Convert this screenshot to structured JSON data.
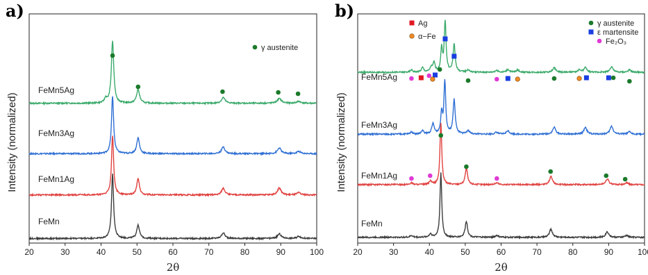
{
  "chart_data": [
    {
      "panel": "a)",
      "type": "line",
      "xlabel": "2θ",
      "ylabel": "Intensity (normalized)",
      "xlim": [
        20,
        100
      ],
      "xticks": [
        "20",
        "30",
        "40",
        "50",
        "60",
        "70",
        "80",
        "90",
        "100"
      ],
      "series": [
        {
          "name": "FeMn5Ag",
          "color": "#3aaa6a",
          "offset": 0.61,
          "peaks": [
            [
              41.3,
              0.02,
              0.4
            ],
            [
              43.2,
              0.27,
              0.4
            ],
            [
              50.3,
              0.06,
              0.5
            ],
            [
              74.0,
              0.025,
              0.6
            ],
            [
              89.6,
              0.02,
              0.7
            ],
            [
              95.0,
              0.008,
              0.7
            ]
          ]
        },
        {
          "name": "FeMn3Ag",
          "color": "#2f6fd4",
          "offset": 0.39,
          "peaks": [
            [
              43.2,
              0.25,
              0.35
            ],
            [
              50.3,
              0.07,
              0.45
            ],
            [
              74.0,
              0.03,
              0.55
            ],
            [
              89.6,
              0.025,
              0.6
            ],
            [
              95.0,
              0.01,
              0.6
            ]
          ]
        },
        {
          "name": "FeMn1Ag",
          "color": "#e0413f",
          "offset": 0.21,
          "peaks": [
            [
              43.2,
              0.26,
              0.35
            ],
            [
              50.3,
              0.07,
              0.45
            ],
            [
              74.0,
              0.03,
              0.55
            ],
            [
              89.6,
              0.03,
              0.6
            ],
            [
              95.0,
              0.01,
              0.6
            ]
          ]
        },
        {
          "name": "FeMn",
          "color": "#3c3c3c",
          "offset": 0.02,
          "peaks": [
            [
              43.2,
              0.28,
              0.35
            ],
            [
              50.3,
              0.06,
              0.45
            ],
            [
              74.0,
              0.025,
              0.55
            ],
            [
              89.6,
              0.02,
              0.6
            ],
            [
              95.0,
              0.01,
              0.6
            ]
          ]
        }
      ],
      "markers": [
        {
          "kind": "austenite",
          "x": [
            43.2,
            50.3,
            73.8,
            89.3,
            94.8
          ]
        }
      ],
      "legend": [
        {
          "kind": "austenite",
          "label": "γ austenite",
          "color": "#1a7a2a",
          "shape": "circle"
        }
      ]
    },
    {
      "panel": "b)",
      "type": "line",
      "xlabel": "2θ",
      "ylabel": "Intensity (normalized)",
      "xlim": [
        20,
        100
      ],
      "xticks": [
        "20",
        "30",
        "40",
        "50",
        "60",
        "70",
        "80",
        "90",
        "100"
      ],
      "series": [
        {
          "name": "FeMn5Ag",
          "color": "#3aaa6a",
          "offset": 0.745,
          "peaks": [
            [
              35.0,
              0.01,
              0.4
            ],
            [
              38.1,
              0.02,
              0.4
            ],
            [
              40.5,
              0.02,
              0.4
            ],
            [
              41.3,
              0.04,
              0.35
            ],
            [
              43.4,
              0.1,
              0.3
            ],
            [
              44.4,
              0.22,
              0.3
            ],
            [
              46.9,
              0.12,
              0.35
            ],
            [
              50.8,
              0.01,
              0.5
            ],
            [
              58.7,
              0.008,
              0.5
            ],
            [
              61.9,
              0.012,
              0.5
            ],
            [
              64.6,
              0.01,
              0.5
            ],
            [
              74.8,
              0.02,
              0.5
            ],
            [
              81.8,
              0.01,
              0.5
            ],
            [
              83.5,
              0.02,
              0.5
            ],
            [
              90.8,
              0.025,
              0.5
            ],
            [
              95.8,
              0.01,
              0.5
            ]
          ]
        },
        {
          "name": "FeMn3Ag",
          "color": "#2f6fd4",
          "offset": 0.475,
          "peaks": [
            [
              35.0,
              0.01,
              0.4
            ],
            [
              38.1,
              0.015,
              0.4
            ],
            [
              41.0,
              0.045,
              0.4
            ],
            [
              43.4,
              0.09,
              0.3
            ],
            [
              44.3,
              0.23,
              0.3
            ],
            [
              46.9,
              0.15,
              0.35
            ],
            [
              50.8,
              0.015,
              0.5
            ],
            [
              58.7,
              0.008,
              0.5
            ],
            [
              61.9,
              0.015,
              0.5
            ],
            [
              74.8,
              0.03,
              0.5
            ],
            [
              83.5,
              0.03,
              0.5
            ],
            [
              90.8,
              0.035,
              0.5
            ],
            [
              95.8,
              0.01,
              0.5
            ]
          ]
        },
        {
          "name": "FeMn1Ag",
          "color": "#e0413f",
          "offset": 0.255,
          "peaks": [
            [
              35.0,
              0.008,
              0.4
            ],
            [
              40.3,
              0.015,
              0.4
            ],
            [
              43.2,
              0.27,
              0.3
            ],
            [
              50.3,
              0.07,
              0.4
            ],
            [
              58.8,
              0.008,
              0.5
            ],
            [
              73.9,
              0.035,
              0.5
            ],
            [
              89.6,
              0.025,
              0.5
            ],
            [
              95.0,
              0.008,
              0.5
            ]
          ]
        },
        {
          "name": "FeMn",
          "color": "#3c3c3c",
          "offset": 0.025,
          "peaks": [
            [
              35.0,
              0.008,
              0.4
            ],
            [
              40.3,
              0.015,
              0.4
            ],
            [
              43.2,
              0.28,
              0.3
            ],
            [
              50.3,
              0.07,
              0.4
            ],
            [
              58.8,
              0.008,
              0.5
            ],
            [
              73.9,
              0.035,
              0.5
            ],
            [
              89.6,
              0.025,
              0.5
            ],
            [
              95.0,
              0.008,
              0.5
            ]
          ]
        }
      ],
      "markers": [
        {
          "kind": "ag",
          "x": [
            37.7
          ]
        },
        {
          "kind": "fe2o3",
          "x": [
            35.0,
            39.9,
            58.8,
            81.8,
            35.0,
            40.2,
            58.8
          ]
        },
        {
          "kind": "martensite",
          "x": [
            41.6,
            44.4,
            46.9,
            61.9,
            83.8,
            90.0
          ]
        },
        {
          "kind": "alphafe",
          "x": [
            40.9,
            64.6,
            81.8
          ]
        },
        {
          "kind": "austenite",
          "x": [
            42.9,
            50.8,
            74.8,
            91.3,
            95.8,
            43.2,
            50.3,
            73.8,
            89.3,
            94.6
          ]
        }
      ],
      "legend": [
        {
          "kind": "ag",
          "label": "Ag",
          "color": "#e01822",
          "shape": "square"
        },
        {
          "kind": "alphafe",
          "label": "α−Fe",
          "color": "#f08a24",
          "shape": "circle"
        },
        {
          "kind": "austenite",
          "label": "γ austenite",
          "color": "#1a7a2a",
          "shape": "circle"
        },
        {
          "kind": "martensite",
          "label": "ε martensite",
          "color": "#1a3ee0",
          "shape": "square"
        },
        {
          "kind": "fe2o3",
          "label": "Fe₂O₃",
          "color": "#e03ad6",
          "shape": "circle"
        }
      ]
    }
  ]
}
